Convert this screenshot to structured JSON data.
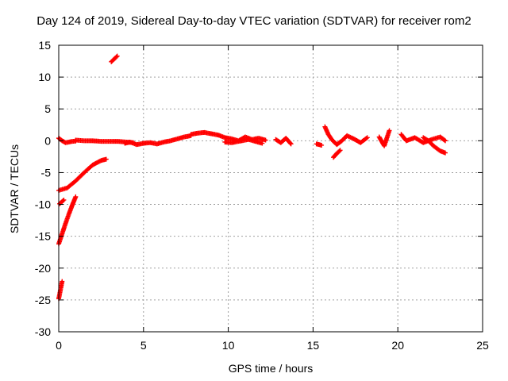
{
  "chart_data": {
    "type": "scatter",
    "title": "Day 124 of 2019, Sidereal Day-to-day VTEC variation (SDTVAR) for receiver rom2",
    "xlabel": "GPS time / hours",
    "ylabel": "SDTVAR / TECUs",
    "xlim": [
      0,
      25
    ],
    "ylim": [
      -30,
      15
    ],
    "xticks": [
      0,
      5,
      10,
      15,
      20,
      25
    ],
    "yticks": [
      -30,
      -25,
      -20,
      -15,
      -10,
      -5,
      0,
      5,
      10,
      15
    ],
    "grid": true,
    "marker": "plus",
    "color": "#ff0000",
    "series": [
      {
        "name": "SDTVAR",
        "segments": [
          {
            "x": [
              0.0,
              0.2,
              0.4,
              0.6,
              0.8,
              1.0
            ],
            "y": [
              0.4,
              0.0,
              -0.3,
              -0.2,
              -0.1,
              -0.05
            ]
          },
          {
            "x": [
              1.0,
              1.5,
              2.0,
              2.5,
              3.0,
              3.5,
              4.0,
              4.4
            ],
            "y": [
              0.1,
              0.0,
              0.0,
              -0.1,
              -0.1,
              -0.1,
              -0.2,
              -0.3
            ]
          },
          {
            "x": [
              3.9,
              4.2,
              4.6,
              5.0,
              5.4,
              5.8,
              6.2,
              6.6,
              7.0,
              7.4,
              7.8
            ],
            "y": [
              -0.4,
              -0.2,
              -0.6,
              -0.4,
              -0.3,
              -0.5,
              -0.2,
              0.0,
              0.3,
              0.6,
              0.8
            ]
          },
          {
            "x": [
              7.8,
              8.2,
              8.6,
              9.0,
              9.4,
              9.8,
              10.2,
              10.6,
              11.0,
              11.4,
              11.8,
              12.2
            ],
            "y": [
              1.0,
              1.2,
              1.3,
              1.1,
              0.9,
              0.5,
              0.3,
              0.0,
              0.6,
              0.2,
              0.4,
              0.1
            ]
          },
          {
            "x": [
              9.8,
              10.2,
              10.6,
              11.2,
              12.0
            ],
            "y": [
              -0.2,
              -0.3,
              -0.1,
              0.2,
              -0.4
            ]
          },
          {
            "x": [
              12.8,
              13.1,
              13.4,
              13.7
            ],
            "y": [
              0.2,
              -0.3,
              0.4,
              -0.5
            ]
          },
          {
            "x": [
              15.2,
              15.5
            ],
            "y": [
              -0.5,
              -0.7
            ]
          },
          {
            "x": [
              15.7,
              15.9,
              16.1,
              16.4,
              16.7,
              17.0,
              17.4,
              17.8,
              18.2
            ],
            "y": [
              2.2,
              1.0,
              0.2,
              -0.6,
              0.0,
              0.8,
              0.3,
              -0.3,
              0.5
            ]
          },
          {
            "x": [
              16.2,
              16.4,
              16.6
            ],
            "y": [
              -2.6,
              -2.0,
              -1.5
            ]
          },
          {
            "x": [
              18.9,
              19.2,
              19.5
            ],
            "y": [
              0.6,
              -0.8,
              1.6
            ]
          },
          {
            "x": [
              20.2,
              20.5,
              21.0,
              21.5,
              22.0,
              22.5,
              22.8
            ],
            "y": [
              1.0,
              0.0,
              0.5,
              -0.3,
              0.2,
              0.6,
              0.0
            ]
          },
          {
            "x": [
              21.5,
              21.8,
              22.1,
              22.5,
              22.8
            ],
            "y": [
              0.5,
              0.0,
              -0.8,
              -1.6,
              -1.9
            ]
          },
          {
            "x": [
              0.0,
              0.5,
              1.0,
              1.5,
              2.0,
              2.5,
              2.8
            ],
            "y": [
              -7.8,
              -7.4,
              -6.3,
              -5.0,
              -3.8,
              -3.1,
              -2.9
            ]
          },
          {
            "x": [
              0.05,
              0.3
            ],
            "y": [
              -9.9,
              -9.3
            ]
          },
          {
            "x": [
              0.0,
              0.2,
              0.4,
              0.6,
              0.8,
              1.0
            ],
            "y": [
              -16.2,
              -14.6,
              -13.0,
              -11.5,
              -10.1,
              -8.8
            ]
          },
          {
            "x": [
              0.0,
              0.2
            ],
            "y": [
              -24.8,
              -22.1
            ]
          },
          {
            "x": [
              3.1,
              3.45
            ],
            "y": [
              12.4,
              13.3
            ]
          }
        ]
      }
    ]
  }
}
